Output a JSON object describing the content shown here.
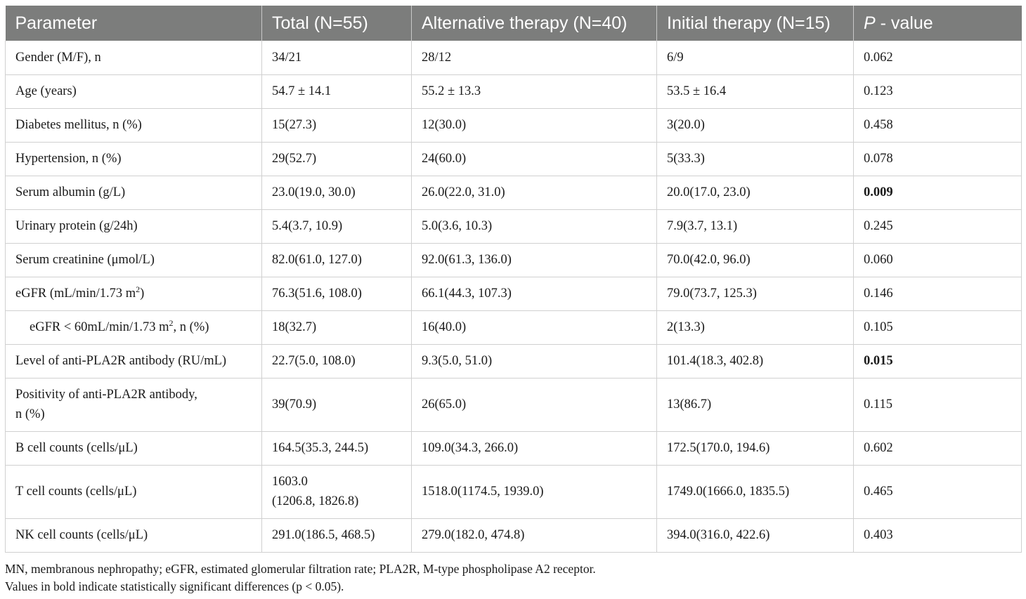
{
  "header": {
    "col1": "Parameter",
    "col2": "Total (N=55)",
    "col3": "Alternative therapy (N=40)",
    "col4": "Initial therapy (N=15)",
    "col5_italic": "P",
    "col5_rest": "- value"
  },
  "rows": [
    {
      "param": "Gender (M/F), n",
      "total": "34/21",
      "alt": "28/12",
      "init": "6/9",
      "p": "0.062"
    },
    {
      "param": "Age (years)",
      "total": "54.7 ± 14.1",
      "alt": "55.2 ± 13.3",
      "init": "53.5 ± 16.4",
      "p": "0.123"
    },
    {
      "param": "Diabetes mellitus, n (%)",
      "total": "15(27.3)",
      "alt": "12(30.0)",
      "init": "3(20.0)",
      "p": "0.458"
    },
    {
      "param": "Hypertension, n (%)",
      "total": "29(52.7)",
      "alt": "24(60.0)",
      "init": "5(33.3)",
      "p": "0.078"
    },
    {
      "param": "Serum albumin (g/L)",
      "total": "23.0(19.0, 30.0)",
      "alt": "26.0(22.0, 31.0)",
      "init": "20.0(17.0, 23.0)",
      "p": "0.009"
    },
    {
      "param": "Urinary protein (g/24h)",
      "total": "5.4(3.7, 10.9)",
      "alt": "5.0(3.6, 10.3)",
      "init": "7.9(3.7, 13.1)",
      "p": "0.245"
    },
    {
      "param": "Serum creatinine (μmol/L)",
      "total": "82.0(61.0, 127.0)",
      "alt": "92.0(61.3, 136.0)",
      "init": "70.0(42.0, 96.0)",
      "p": "0.060"
    },
    {
      "param_pre": "eGFR (mL/min/1.73 m",
      "param_sup": "2",
      "param_post": ")",
      "total": "76.3(51.6, 108.0)",
      "alt": "66.1(44.3, 107.3)",
      "init": "79.0(73.7, 125.3)",
      "p": "0.146"
    },
    {
      "param_pre": "eGFR < 60mL/min/1.73 m",
      "param_sup": "2",
      "param_post": ", n (%)",
      "total": "18(32.7)",
      "alt": "16(40.0)",
      "init": "2(13.3)",
      "p": "0.105"
    },
    {
      "param": "Level of anti-PLA2R antibody (RU/mL)",
      "total": "22.7(5.0, 108.0)",
      "alt": "9.3(5.0, 51.0)",
      "init": "101.4(18.3, 402.8)",
      "p": "0.015"
    },
    {
      "param_line1": "Positivity of anti-PLA2R antibody,",
      "param_line2": "n (%)",
      "total": "39(70.9)",
      "alt": "26(65.0)",
      "init": "13(86.7)",
      "p": "0.115"
    },
    {
      "param": "B cell counts (cells/μL)",
      "total": "164.5(35.3, 244.5)",
      "alt": "109.0(34.3, 266.0)",
      "init": "172.5(170.0, 194.6)",
      "p": "0.602"
    },
    {
      "param": "T cell counts (cells/μL)",
      "total_line1": "1603.0",
      "total_line2": "(1206.8, 1826.8)",
      "alt": "1518.0(1174.5, 1939.0)",
      "init": "1749.0(1666.0, 1835.5)",
      "p": "0.465"
    },
    {
      "param": "NK cell counts (cells/μL)",
      "total": "291.0(186.5, 468.5)",
      "alt": "279.0(182.0, 474.8)",
      "init": "394.0(316.0, 422.6)",
      "p": "0.403"
    }
  ],
  "footnotes": {
    "line1": "MN, membranous nephropathy; eGFR, estimated glomerular filtration rate; PLA2R, M-type phospholipase A2 receptor.",
    "line2": "Values in bold indicate statistically significant differences (p < 0.05)."
  }
}
